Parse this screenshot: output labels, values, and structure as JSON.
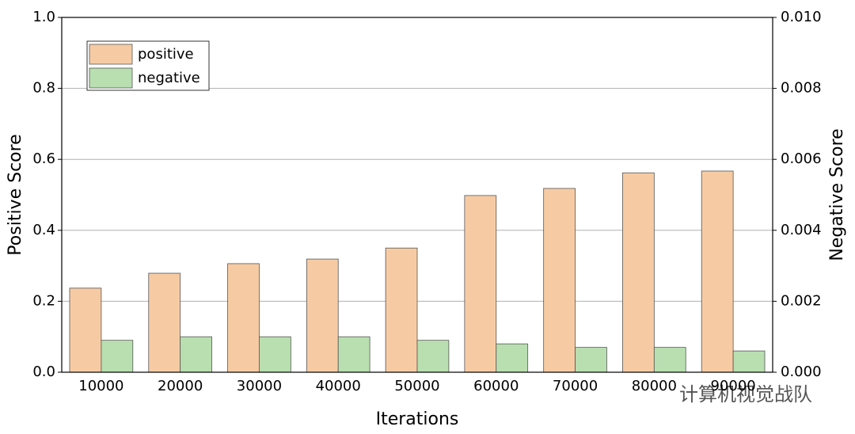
{
  "chart_data": {
    "type": "bar",
    "xlabel": "Iterations",
    "ylabel": "Positive Score",
    "y2label": "Negative Score",
    "categories": [
      "10000",
      "20000",
      "30000",
      "40000",
      "50000",
      "60000",
      "70000",
      "80000",
      "90000"
    ],
    "series": [
      {
        "name": "positive",
        "color": "#f6cba4",
        "values": [
          0.237,
          0.279,
          0.306,
          0.319,
          0.35,
          0.498,
          0.518,
          0.562,
          0.567
        ]
      },
      {
        "name": "negative",
        "color": "#b9dfb0",
        "axis": "y2",
        "values": [
          0.0009,
          0.001,
          0.001,
          0.001,
          0.0009,
          0.0008,
          0.0007,
          0.0007,
          0.0006
        ]
      }
    ],
    "ylim": [
      0,
      1.0
    ],
    "yticks": [
      {
        "value": 0,
        "label": "0.0"
      },
      0.2,
      0.4,
      0.6,
      0.8,
      {
        "value": 1.0,
        "label": "1.0"
      }
    ],
    "y2lim": [
      0,
      0.01
    ],
    "y2ticks": [
      {
        "value": 0,
        "label": "0.000"
      },
      {
        "value": 0.002,
        "label": "0.002"
      },
      {
        "value": 0.004,
        "label": "0.004"
      },
      {
        "value": 0.006,
        "label": "0.006"
      },
      {
        "value": 0.008,
        "label": "0.008"
      },
      {
        "value": 0.01,
        "label": "0.010"
      }
    ],
    "grid": true,
    "legend": "upper-left",
    "watermark": "计算机视觉战队"
  }
}
